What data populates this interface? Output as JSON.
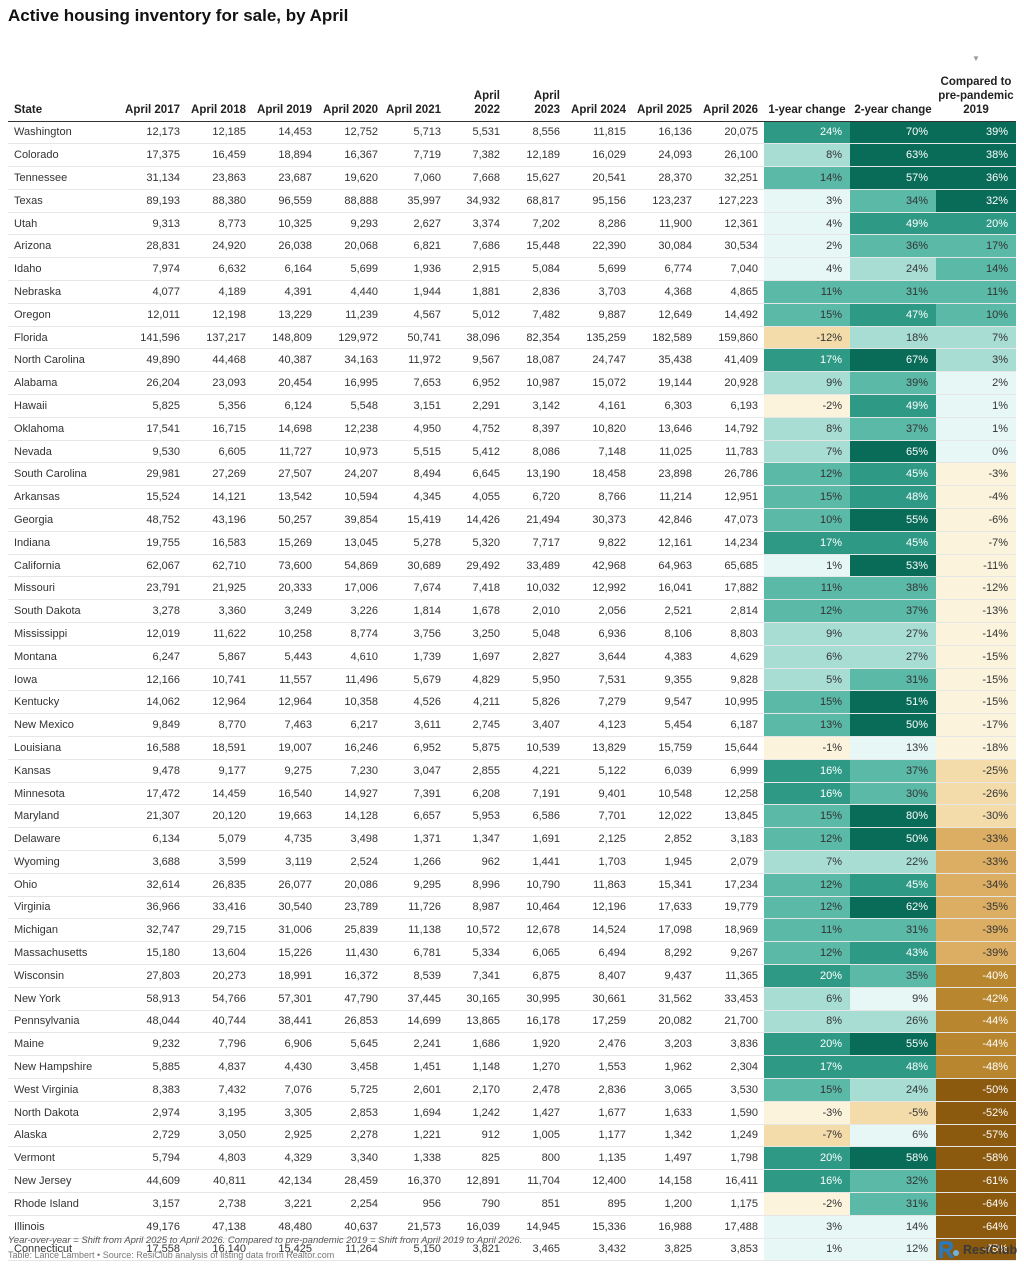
{
  "title": "Active housing inventory for sale, by April",
  "footnote": "Year-over-year = Shift from April 2025 to April 2026. Compared to pre-pandemic 2019 = Shift from April 2019 to April 2026.",
  "source": "Table: Lance Lambert • Source: ResiClub analysis of listing data from Realtor.com",
  "brand": {
    "name": "ResiClub",
    "logo_icon": "resiclub-logo-icon"
  },
  "colors": {
    "positive_scale": [
      "#e6f7f5",
      "#a8ddd4",
      "#5bb9a8",
      "#2e9a86",
      "#096c59"
    ],
    "negative_scale": [
      "#fbf3dc",
      "#f3dcaa",
      "#dcae63",
      "#b8862e",
      "#8b5a0e"
    ]
  },
  "sort_icon": "sort-desc-icon",
  "chart_data": {
    "type": "table",
    "columns": [
      "State",
      "April 2017",
      "April 2018",
      "April 2019",
      "April 2020",
      "April 2021",
      "April 2022",
      "April 2023",
      "April 2024",
      "April 2025",
      "April 2026",
      "1-year change",
      "2-year change",
      "Compared to pre-pandemic 2019"
    ],
    "rows": [
      [
        "Washington",
        "12,173",
        "12,185",
        "14,453",
        "12,752",
        "5,713",
        "5,531",
        "8,556",
        "11,815",
        "16,136",
        "20,075",
        "24%",
        "70%",
        "39%"
      ],
      [
        "Colorado",
        "17,375",
        "16,459",
        "18,894",
        "16,367",
        "7,719",
        "7,382",
        "12,189",
        "16,029",
        "24,093",
        "26,100",
        "8%",
        "63%",
        "38%"
      ],
      [
        "Tennessee",
        "31,134",
        "23,863",
        "23,687",
        "19,620",
        "7,060",
        "7,668",
        "15,627",
        "20,541",
        "28,370",
        "32,251",
        "14%",
        "57%",
        "36%"
      ],
      [
        "Texas",
        "89,193",
        "88,380",
        "96,559",
        "88,888",
        "35,997",
        "34,932",
        "68,817",
        "95,156",
        "123,237",
        "127,223",
        "3%",
        "34%",
        "32%"
      ],
      [
        "Utah",
        "9,313",
        "8,773",
        "10,325",
        "9,293",
        "2,627",
        "3,374",
        "7,202",
        "8,286",
        "11,900",
        "12,361",
        "4%",
        "49%",
        "20%"
      ],
      [
        "Arizona",
        "28,831",
        "24,920",
        "26,038",
        "20,068",
        "6,821",
        "7,686",
        "15,448",
        "22,390",
        "30,084",
        "30,534",
        "2%",
        "36%",
        "17%"
      ],
      [
        "Idaho",
        "7,974",
        "6,632",
        "6,164",
        "5,699",
        "1,936",
        "2,915",
        "5,084",
        "5,699",
        "6,774",
        "7,040",
        "4%",
        "24%",
        "14%"
      ],
      [
        "Nebraska",
        "4,077",
        "4,189",
        "4,391",
        "4,440",
        "1,944",
        "1,881",
        "2,836",
        "3,703",
        "4,368",
        "4,865",
        "11%",
        "31%",
        "11%"
      ],
      [
        "Oregon",
        "12,011",
        "12,198",
        "13,229",
        "11,239",
        "4,567",
        "5,012",
        "7,482",
        "9,887",
        "12,649",
        "14,492",
        "15%",
        "47%",
        "10%"
      ],
      [
        "Florida",
        "141,596",
        "137,217",
        "148,809",
        "129,972",
        "50,741",
        "38,096",
        "82,354",
        "135,259",
        "182,589",
        "159,860",
        "-12%",
        "18%",
        "7%"
      ],
      [
        "North Carolina",
        "49,890",
        "44,468",
        "40,387",
        "34,163",
        "11,972",
        "9,567",
        "18,087",
        "24,747",
        "35,438",
        "41,409",
        "17%",
        "67%",
        "3%"
      ],
      [
        "Alabama",
        "26,204",
        "23,093",
        "20,454",
        "16,995",
        "7,653",
        "6,952",
        "10,987",
        "15,072",
        "19,144",
        "20,928",
        "9%",
        "39%",
        "2%"
      ],
      [
        "Hawaii",
        "5,825",
        "5,356",
        "6,124",
        "5,548",
        "3,151",
        "2,291",
        "3,142",
        "4,161",
        "6,303",
        "6,193",
        "-2%",
        "49%",
        "1%"
      ],
      [
        "Oklahoma",
        "17,541",
        "16,715",
        "14,698",
        "12,238",
        "4,950",
        "4,752",
        "8,397",
        "10,820",
        "13,646",
        "14,792",
        "8%",
        "37%",
        "1%"
      ],
      [
        "Nevada",
        "9,530",
        "6,605",
        "11,727",
        "10,973",
        "5,515",
        "5,412",
        "8,086",
        "7,148",
        "11,025",
        "11,783",
        "7%",
        "65%",
        "0%"
      ],
      [
        "South Carolina",
        "29,981",
        "27,269",
        "27,507",
        "24,207",
        "8,494",
        "6,645",
        "13,190",
        "18,458",
        "23,898",
        "26,786",
        "12%",
        "45%",
        "-3%"
      ],
      [
        "Arkansas",
        "15,524",
        "14,121",
        "13,542",
        "10,594",
        "4,345",
        "4,055",
        "6,720",
        "8,766",
        "11,214",
        "12,951",
        "15%",
        "48%",
        "-4%"
      ],
      [
        "Georgia",
        "48,752",
        "43,196",
        "50,257",
        "39,854",
        "15,419",
        "14,426",
        "21,494",
        "30,373",
        "42,846",
        "47,073",
        "10%",
        "55%",
        "-6%"
      ],
      [
        "Indiana",
        "19,755",
        "16,583",
        "15,269",
        "13,045",
        "5,278",
        "5,320",
        "7,717",
        "9,822",
        "12,161",
        "14,234",
        "17%",
        "45%",
        "-7%"
      ],
      [
        "California",
        "62,067",
        "62,710",
        "73,600",
        "54,869",
        "30,689",
        "29,492",
        "33,489",
        "42,968",
        "64,963",
        "65,685",
        "1%",
        "53%",
        "-11%"
      ],
      [
        "Missouri",
        "23,791",
        "21,925",
        "20,333",
        "17,006",
        "7,674",
        "7,418",
        "10,032",
        "12,992",
        "16,041",
        "17,882",
        "11%",
        "38%",
        "-12%"
      ],
      [
        "South Dakota",
        "3,278",
        "3,360",
        "3,249",
        "3,226",
        "1,814",
        "1,678",
        "2,010",
        "2,056",
        "2,521",
        "2,814",
        "12%",
        "37%",
        "-13%"
      ],
      [
        "Mississippi",
        "12,019",
        "11,622",
        "10,258",
        "8,774",
        "3,756",
        "3,250",
        "5,048",
        "6,936",
        "8,106",
        "8,803",
        "9%",
        "27%",
        "-14%"
      ],
      [
        "Montana",
        "6,247",
        "5,867",
        "5,443",
        "4,610",
        "1,739",
        "1,697",
        "2,827",
        "3,644",
        "4,383",
        "4,629",
        "6%",
        "27%",
        "-15%"
      ],
      [
        "Iowa",
        "12,166",
        "10,741",
        "11,557",
        "11,496",
        "5,679",
        "4,829",
        "5,950",
        "7,531",
        "9,355",
        "9,828",
        "5%",
        "31%",
        "-15%"
      ],
      [
        "Kentucky",
        "14,062",
        "12,964",
        "12,964",
        "10,358",
        "4,526",
        "4,211",
        "5,826",
        "7,279",
        "9,547",
        "10,995",
        "15%",
        "51%",
        "-15%"
      ],
      [
        "New Mexico",
        "9,849",
        "8,770",
        "7,463",
        "6,217",
        "3,611",
        "2,745",
        "3,407",
        "4,123",
        "5,454",
        "6,187",
        "13%",
        "50%",
        "-17%"
      ],
      [
        "Louisiana",
        "16,588",
        "18,591",
        "19,007",
        "16,246",
        "6,952",
        "5,875",
        "10,539",
        "13,829",
        "15,759",
        "15,644",
        "-1%",
        "13%",
        "-18%"
      ],
      [
        "Kansas",
        "9,478",
        "9,177",
        "9,275",
        "7,230",
        "3,047",
        "2,855",
        "4,221",
        "5,122",
        "6,039",
        "6,999",
        "16%",
        "37%",
        "-25%"
      ],
      [
        "Minnesota",
        "17,472",
        "14,459",
        "16,540",
        "14,927",
        "7,391",
        "6,208",
        "7,191",
        "9,401",
        "10,548",
        "12,258",
        "16%",
        "30%",
        "-26%"
      ],
      [
        "Maryland",
        "21,307",
        "20,120",
        "19,663",
        "14,128",
        "6,657",
        "5,953",
        "6,586",
        "7,701",
        "12,022",
        "13,845",
        "15%",
        "80%",
        "-30%"
      ],
      [
        "Delaware",
        "6,134",
        "5,079",
        "4,735",
        "3,498",
        "1,371",
        "1,347",
        "1,691",
        "2,125",
        "2,852",
        "3,183",
        "12%",
        "50%",
        "-33%"
      ],
      [
        "Wyoming",
        "3,688",
        "3,599",
        "3,119",
        "2,524",
        "1,266",
        "962",
        "1,441",
        "1,703",
        "1,945",
        "2,079",
        "7%",
        "22%",
        "-33%"
      ],
      [
        "Ohio",
        "32,614",
        "26,835",
        "26,077",
        "20,086",
        "9,295",
        "8,996",
        "10,790",
        "11,863",
        "15,341",
        "17,234",
        "12%",
        "45%",
        "-34%"
      ],
      [
        "Virginia",
        "36,966",
        "33,416",
        "30,540",
        "23,789",
        "11,726",
        "8,987",
        "10,464",
        "12,196",
        "17,633",
        "19,779",
        "12%",
        "62%",
        "-35%"
      ],
      [
        "Michigan",
        "32,747",
        "29,715",
        "31,006",
        "25,839",
        "11,138",
        "10,572",
        "12,678",
        "14,524",
        "17,098",
        "18,969",
        "11%",
        "31%",
        "-39%"
      ],
      [
        "Massachusetts",
        "15,180",
        "13,604",
        "15,226",
        "11,430",
        "6,781",
        "5,334",
        "6,065",
        "6,494",
        "8,292",
        "9,267",
        "12%",
        "43%",
        "-39%"
      ],
      [
        "Wisconsin",
        "27,803",
        "20,273",
        "18,991",
        "16,372",
        "8,539",
        "7,341",
        "6,875",
        "8,407",
        "9,437",
        "11,365",
        "20%",
        "35%",
        "-40%"
      ],
      [
        "New York",
        "58,913",
        "54,766",
        "57,301",
        "47,790",
        "37,445",
        "30,165",
        "30,995",
        "30,661",
        "31,562",
        "33,453",
        "6%",
        "9%",
        "-42%"
      ],
      [
        "Pennsylvania",
        "48,044",
        "40,744",
        "38,441",
        "26,853",
        "14,699",
        "13,865",
        "16,178",
        "17,259",
        "20,082",
        "21,700",
        "8%",
        "26%",
        "-44%"
      ],
      [
        "Maine",
        "9,232",
        "7,796",
        "6,906",
        "5,645",
        "2,241",
        "1,686",
        "1,920",
        "2,476",
        "3,203",
        "3,836",
        "20%",
        "55%",
        "-44%"
      ],
      [
        "New Hampshire",
        "5,885",
        "4,837",
        "4,430",
        "3,458",
        "1,451",
        "1,148",
        "1,270",
        "1,553",
        "1,962",
        "2,304",
        "17%",
        "48%",
        "-48%"
      ],
      [
        "West Virginia",
        "8,383",
        "7,432",
        "7,076",
        "5,725",
        "2,601",
        "2,170",
        "2,478",
        "2,836",
        "3,065",
        "3,530",
        "15%",
        "24%",
        "-50%"
      ],
      [
        "North Dakota",
        "2,974",
        "3,195",
        "3,305",
        "2,853",
        "1,694",
        "1,242",
        "1,427",
        "1,677",
        "1,633",
        "1,590",
        "-3%",
        "-5%",
        "-52%"
      ],
      [
        "Alaska",
        "2,729",
        "3,050",
        "2,925",
        "2,278",
        "1,221",
        "912",
        "1,005",
        "1,177",
        "1,342",
        "1,249",
        "-7%",
        "6%",
        "-57%"
      ],
      [
        "Vermont",
        "5,794",
        "4,803",
        "4,329",
        "3,340",
        "1,338",
        "825",
        "800",
        "1,135",
        "1,497",
        "1,798",
        "20%",
        "58%",
        "-58%"
      ],
      [
        "New Jersey",
        "44,609",
        "40,811",
        "42,134",
        "28,459",
        "16,370",
        "12,891",
        "11,704",
        "12,400",
        "14,158",
        "16,411",
        "16%",
        "32%",
        "-61%"
      ],
      [
        "Rhode Island",
        "3,157",
        "2,738",
        "3,221",
        "2,254",
        "956",
        "790",
        "851",
        "895",
        "1,200",
        "1,175",
        "-2%",
        "31%",
        "-64%"
      ],
      [
        "Illinois",
        "49,176",
        "47,138",
        "48,480",
        "40,637",
        "21,573",
        "16,039",
        "14,945",
        "15,336",
        "16,988",
        "17,488",
        "3%",
        "14%",
        "-64%"
      ],
      [
        "Connecticut",
        "17,558",
        "16,140",
        "15,425",
        "11,264",
        "5,150",
        "3,821",
        "3,465",
        "3,432",
        "3,825",
        "3,853",
        "1%",
        "12%",
        "-75%"
      ]
    ]
  }
}
